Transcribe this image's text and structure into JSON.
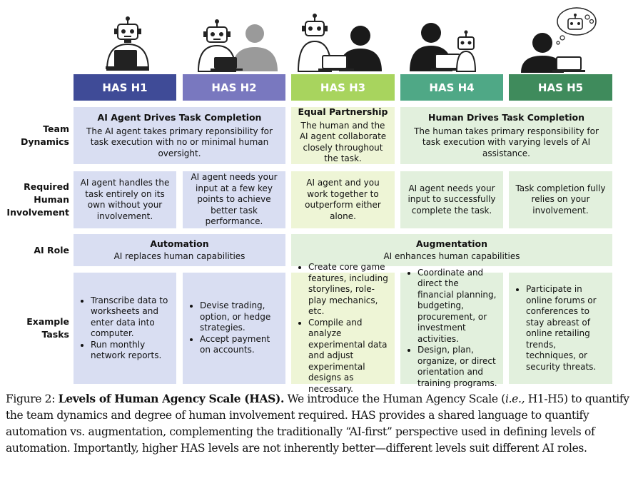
{
  "colors": {
    "h1": "#3f4b97",
    "h2": "#7978bf",
    "h3": "#a8d45e",
    "h4": "#4fa886",
    "h5": "#3f8b5c",
    "automation_bg": "#d9def2",
    "partnership_bg": "#eef5d6",
    "human_bg": "#e2f0dd"
  },
  "headers": [
    "HAS H1",
    "HAS H2",
    "HAS H3",
    "HAS H4",
    "HAS H5"
  ],
  "row_labels": {
    "team_dynamics": "Team Dynamics",
    "required_involvement": "Required Human Involvement",
    "ai_role": "AI Role",
    "example_tasks": "Example Tasks"
  },
  "team_dynamics": {
    "ai_drives": {
      "title": "AI Agent Drives Task Completion",
      "desc": "The AI agent takes primary reponsibility for task execution with no or minimal human oversight."
    },
    "equal": {
      "title": "Equal Partnership",
      "desc": "The human and the AI agent collaborate closely throughout the task."
    },
    "human_drives": {
      "title": "Human Drives Task Completion",
      "desc": "The human takes primary responsibility for task execution with varying levels of AI assistance."
    }
  },
  "involvement": [
    "AI agent handles the task entirely on its own without your involvement.",
    "AI agent needs your input at a few key points to achieve better task performance.",
    "AI agent and you work together to outperform either alone.",
    "AI agent needs your input to successfully complete the task.",
    "Task completion fully relies on your involvement."
  ],
  "ai_role": {
    "automation": {
      "title": "Automation",
      "desc": "AI replaces human capabilities"
    },
    "augmentation": {
      "title": "Augmentation",
      "desc": "AI enhances human capabilities"
    }
  },
  "tasks": [
    [
      "Transcribe data to worksheets and enter data into computer.",
      "Run monthly network reports."
    ],
    [
      "Devise trading, option, or hedge strategies.",
      "Accept payment on accounts."
    ],
    [
      "Create core game features, including storylines, role-play mechanics, etc.",
      "Compile and analyze experimental data and adjust experimental designs as necessary."
    ],
    [
      "Coordinate and direct the financial planning, budgeting, procurement, or investment activities.",
      "Design, plan, organize, or direct orientation and training programs."
    ],
    [
      "Participate in online forums or conferences to stay abreast of online retailing trends, techniques, or security threats."
    ]
  ],
  "caption": {
    "label": "Figure 2:",
    "bold": "Levels of Human Agency Scale (HAS).",
    "text_a": " We introduce the Human Agency Scale (",
    "ie": "i.e.,",
    "text_b": " H1-H5) to quantify the team dynamics and degree of human involvement required.  HAS provides a shared language to quantify automation vs. augmentation, complementing the traditionally “AI-first” perspective used in defining levels of automation. Importantly, higher HAS levels are not inherently better—different levels suit different AI roles."
  }
}
